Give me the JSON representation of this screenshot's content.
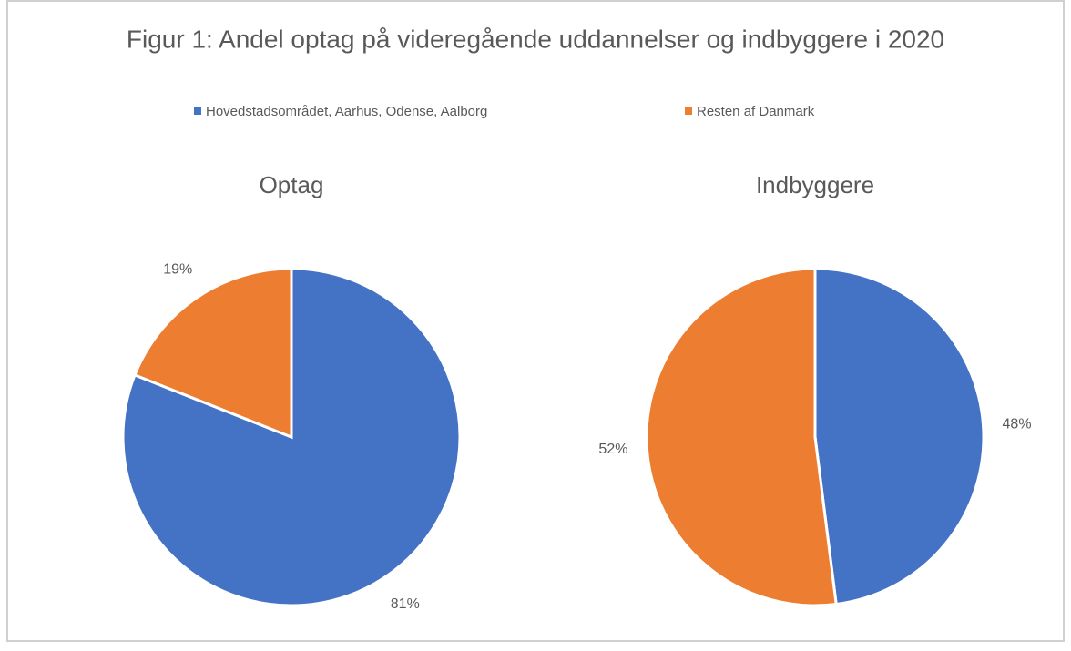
{
  "title": "Figur 1: Andel optag på videregående uddannelser og indbyggere i 2020",
  "legend": {
    "categories": [
      "Hovedstadsområdet, Aarhus, Odense, Aalborg",
      "Resten af Danmark"
    ],
    "colors": [
      "#4472c4",
      "#ed7d31"
    ]
  },
  "chart_data": [
    {
      "type": "pie",
      "title": "Optag",
      "values": [
        81,
        19
      ],
      "value_labels": [
        "81%",
        "19%"
      ]
    },
    {
      "type": "pie",
      "title": "Indbyggere",
      "values": [
        48,
        52
      ],
      "value_labels": [
        "48%",
        "52%"
      ]
    }
  ]
}
